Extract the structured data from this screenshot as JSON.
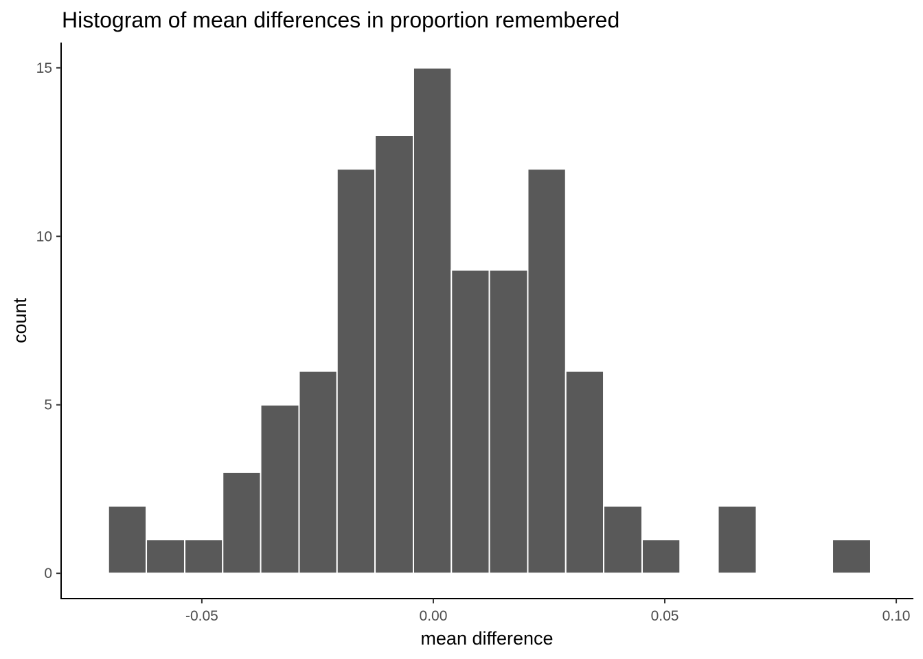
{
  "chart_data": {
    "type": "bar",
    "title": "Histogram of mean differences in proportion remembered",
    "xlabel": "mean difference",
    "ylabel": "count",
    "xlim": [
      -0.0804,
      0.1037
    ],
    "ylim": [
      -0.75,
      15.75
    ],
    "x_ticks": [
      -0.05,
      0.0,
      0.05,
      0.1
    ],
    "x_tick_labels": [
      "-0.05",
      "0.00",
      "0.05",
      "0.10"
    ],
    "y_ticks": [
      0,
      5,
      10,
      15
    ],
    "y_tick_labels": [
      "0",
      "5",
      "10",
      "15"
    ],
    "bin_width": 0.00824,
    "bins": [
      {
        "x0": -0.0702,
        "x1": -0.062,
        "count": 2
      },
      {
        "x0": -0.062,
        "x1": -0.0537,
        "count": 1
      },
      {
        "x0": -0.0537,
        "x1": -0.0455,
        "count": 1
      },
      {
        "x0": -0.0455,
        "x1": -0.0373,
        "count": 3
      },
      {
        "x0": -0.0373,
        "x1": -0.029,
        "count": 5
      },
      {
        "x0": -0.029,
        "x1": -0.0208,
        "count": 6
      },
      {
        "x0": -0.0208,
        "x1": -0.0126,
        "count": 12
      },
      {
        "x0": -0.0126,
        "x1": -0.0043,
        "count": 13
      },
      {
        "x0": -0.0043,
        "x1": 0.0039,
        "count": 15
      },
      {
        "x0": 0.0039,
        "x1": 0.0121,
        "count": 9
      },
      {
        "x0": 0.0121,
        "x1": 0.0204,
        "count": 9
      },
      {
        "x0": 0.0204,
        "x1": 0.0286,
        "count": 12
      },
      {
        "x0": 0.0286,
        "x1": 0.0368,
        "count": 6
      },
      {
        "x0": 0.0368,
        "x1": 0.0451,
        "count": 2
      },
      {
        "x0": 0.0451,
        "x1": 0.0533,
        "count": 1
      },
      {
        "x0": 0.0533,
        "x1": 0.0615,
        "count": 0
      },
      {
        "x0": 0.0615,
        "x1": 0.0698,
        "count": 2
      },
      {
        "x0": 0.0698,
        "x1": 0.078,
        "count": 0
      },
      {
        "x0": 0.078,
        "x1": 0.0862,
        "count": 0
      },
      {
        "x0": 0.0862,
        "x1": 0.0945,
        "count": 1
      }
    ],
    "bar_color": "#595959",
    "bar_outline": "#ffffff",
    "grid": false,
    "legend": "none"
  }
}
